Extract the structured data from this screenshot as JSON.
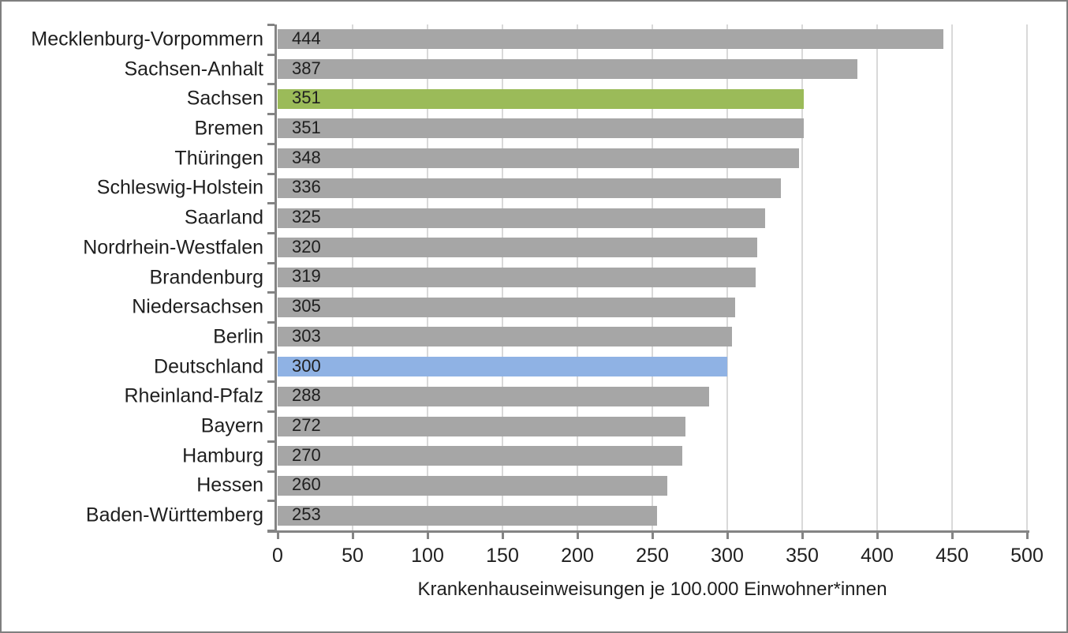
{
  "chart_data": {
    "type": "bar",
    "orientation": "horizontal",
    "title": "",
    "xlabel": "Krankenhauseinweisungen je 100.000 Einwohner*innen",
    "ylabel": "",
    "xlim": [
      0,
      500
    ],
    "x_ticks": [
      0,
      50,
      100,
      150,
      200,
      250,
      300,
      350,
      400,
      450,
      500
    ],
    "grid": "vertical",
    "legend": "none",
    "value_labels": "inside-start",
    "categories": [
      "Mecklenburg-Vorpommern",
      "Sachsen-Anhalt",
      "Sachsen",
      "Bremen",
      "Thüringen",
      "Schleswig-Holstein",
      "Saarland",
      "Nordrhein-Westfalen",
      "Brandenburg",
      "Niedersachsen",
      "Berlin",
      "Deutschland",
      "Rheinland-Pfalz",
      "Bayern",
      "Hamburg",
      "Hessen",
      "Baden-Württemberg"
    ],
    "values": [
      444,
      387,
      351,
      351,
      348,
      336,
      325,
      320,
      319,
      305,
      303,
      300,
      288,
      272,
      270,
      260,
      253
    ],
    "bar_colors": [
      "gray",
      "gray",
      "green",
      "gray",
      "gray",
      "gray",
      "gray",
      "gray",
      "gray",
      "gray",
      "gray",
      "blue",
      "gray",
      "gray",
      "gray",
      "gray",
      "gray"
    ],
    "highlighted": {
      "green_bar_category": "Sachsen",
      "blue_bar_category": "Deutschland"
    }
  },
  "colors": {
    "bar_gray": "#A6A6A6",
    "bar_green": "#9BBB59",
    "bar_blue": "#8FB2E4",
    "gridline": "#D9D9D9",
    "axis": "#848484",
    "text": "#1F1F1F",
    "frame_border": "#7F7F7F",
    "background": "#FFFFFF"
  }
}
